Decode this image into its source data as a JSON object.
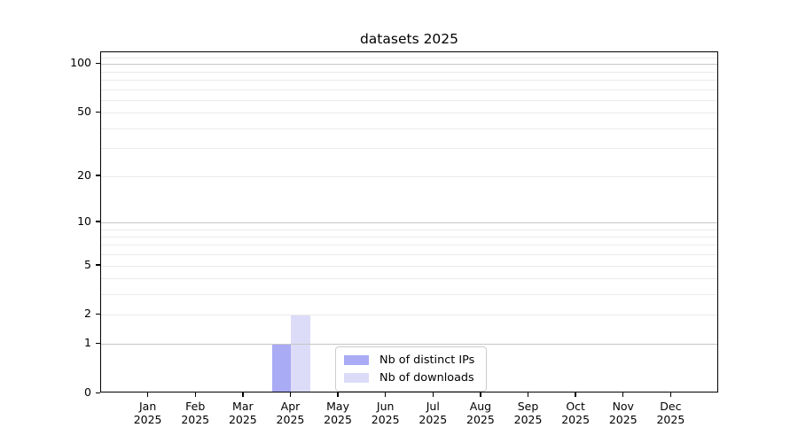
{
  "chart_data": {
    "type": "bar",
    "title": "datasets 2025",
    "categories": [
      "Jan 2025",
      "Feb 2025",
      "Mar 2025",
      "Apr 2025",
      "May 2025",
      "Jun 2025",
      "Jul 2025",
      "Aug 2025",
      "Sep 2025",
      "Oct 2025",
      "Nov 2025",
      "Dec 2025"
    ],
    "series": [
      {
        "name": "Nb of distinct IPs",
        "color": "#a9abf5",
        "values": [
          0,
          0,
          0,
          1,
          0,
          0,
          0,
          0,
          0,
          0,
          0,
          0
        ]
      },
      {
        "name": "Nb of downloads",
        "color": "#dcdcf8",
        "values": [
          0,
          0,
          0,
          2,
          0,
          0,
          0,
          0,
          0,
          0,
          0,
          0
        ]
      }
    ],
    "yaxis": {
      "scale": "log10(1+value)",
      "ticks": [
        0,
        1,
        2,
        5,
        10,
        20,
        50,
        100
      ],
      "minor_ticks": [
        3,
        4,
        6,
        7,
        8,
        9,
        30,
        40,
        60,
        70,
        80,
        90,
        110
      ],
      "max": 118
    },
    "xaxis": {
      "tick_count": 12
    },
    "grid": {
      "major_color": "#c6c6c6",
      "minor_color": "#ebebeb"
    },
    "legend": {
      "position": "inside-bottom-center",
      "entries": [
        "Nb of distinct IPs",
        "Nb of downloads"
      ]
    }
  }
}
